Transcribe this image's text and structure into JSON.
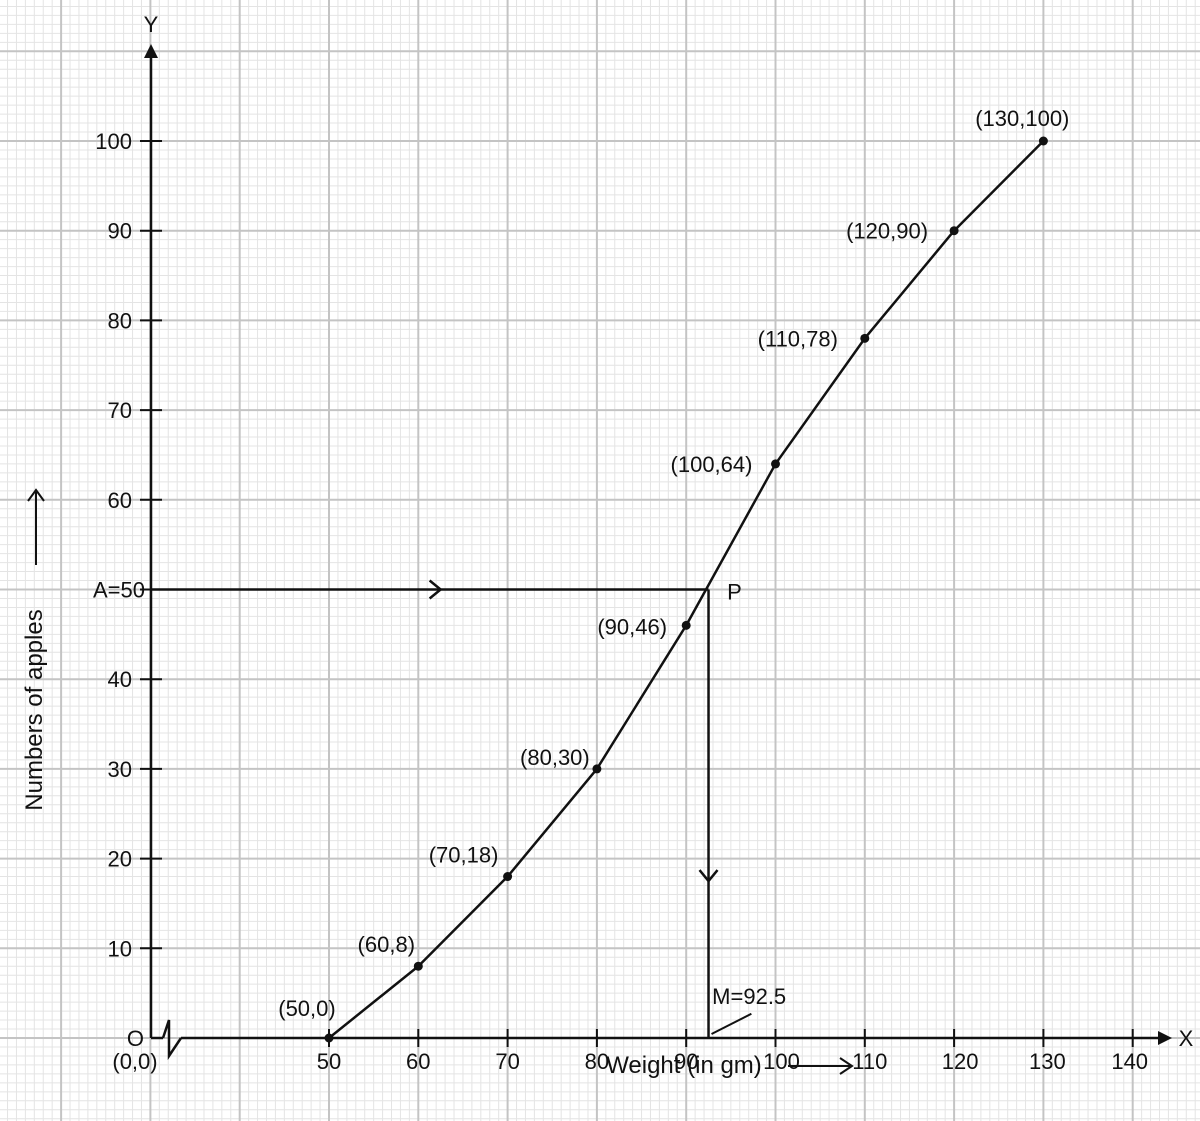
{
  "chart_data": {
    "type": "line",
    "series": [
      {
        "points": [
          {
            "x": 50,
            "y": 0,
            "label": "(50,0)"
          },
          {
            "x": 60,
            "y": 8,
            "label": "(60,8)"
          },
          {
            "x": 70,
            "y": 18,
            "label": "(70,18)"
          },
          {
            "x": 80,
            "y": 30,
            "label": "(80,30)"
          },
          {
            "x": 90,
            "y": 46,
            "label": "(90,46)"
          },
          {
            "x": 100,
            "y": 64,
            "label": "(100,64)"
          },
          {
            "x": 110,
            "y": 78,
            "label": "(110,78)"
          },
          {
            "x": 120,
            "y": 90,
            "label": "(120,90)"
          },
          {
            "x": 130,
            "y": 100,
            "label": "(130,100)"
          }
        ]
      }
    ],
    "xlabel": "Weight (in gm)",
    "ylabel": "Numbers of apples",
    "x_axis_name": "X",
    "y_axis_name": "Y",
    "x_ticks": [
      50,
      60,
      70,
      80,
      90,
      100,
      110,
      120,
      130,
      140
    ],
    "y_ticks": [
      10,
      20,
      30,
      40,
      50,
      60,
      70,
      80,
      90,
      100
    ],
    "origin_label": "O",
    "origin_coord": "(0,0)",
    "xlim": [
      40,
      140
    ],
    "ylim": [
      0,
      100
    ],
    "x_axis_break": true,
    "grid": true,
    "median_construction": {
      "point_label": "P",
      "a_label": "A=50",
      "a_value": 50,
      "m_label": "M=92.5",
      "m_value": 92.5
    }
  }
}
